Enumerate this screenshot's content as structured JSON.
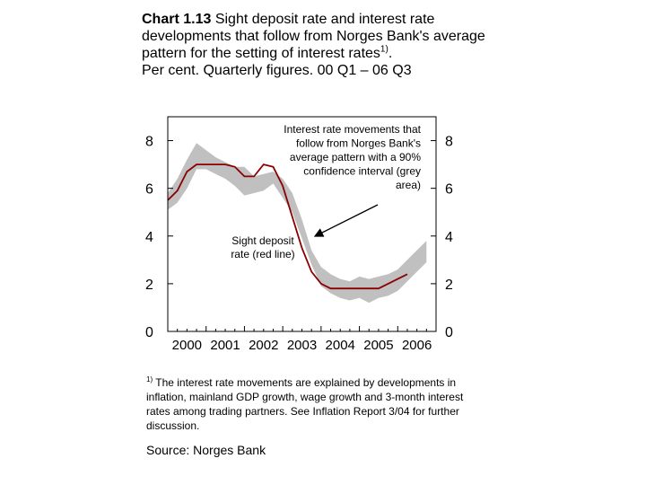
{
  "title": {
    "chart_no": "Chart 1.13",
    "text": "Sight deposit rate and interest rate developments that follow from Norges Bank's average pattern for the setting of interest rates",
    "superscript": "1)",
    "end": ".",
    "subtitle": "Per cent. Quarterly figures. 00 Q1 – 06 Q3"
  },
  "footnote": {
    "marker": "1)",
    "text": "The interest rate movements are explained by developments in inflation, mainland GDP growth, wage growth and 3-month interest rates among trading partners. See Inflation Report 3/04 for further discussion."
  },
  "source": "Source: Norges Bank",
  "chart_data": {
    "type": "line",
    "ylim": [
      0,
      9
    ],
    "yticks": [
      0,
      2,
      4,
      6,
      8
    ],
    "xticks": [
      "2000",
      "2001",
      "2002",
      "2003",
      "2004",
      "2005",
      "2006"
    ],
    "xlim": [
      2000,
      2007
    ],
    "grid": false,
    "annotations": [
      {
        "id": "band",
        "text": [
          "Interest rate movements that",
          "follow from Norges Bank's",
          "average pattern with a 90%",
          "confidence interval (grey",
          "area)"
        ]
      },
      {
        "id": "line",
        "text": [
          "Sight deposit",
          "rate (red line)"
        ]
      }
    ],
    "series": [
      {
        "role": "band",
        "color": "#c0c0c0",
        "x": [
          2000.0,
          2000.25,
          2000.5,
          2000.75,
          2001.0,
          2001.25,
          2001.5,
          2001.75,
          2002.0,
          2002.25,
          2002.5,
          2002.75,
          2003.0,
          2003.25,
          2003.5,
          2003.75,
          2004.0,
          2004.25,
          2004.5,
          2004.75,
          2005.0,
          2005.25,
          2005.5,
          2005.75,
          2006.0,
          2006.25,
          2006.5,
          2006.75
        ],
        "upper": [
          5.8,
          6.4,
          7.2,
          7.9,
          7.6,
          7.3,
          7.1,
          6.9,
          6.9,
          6.5,
          6.6,
          6.7,
          6.4,
          5.8,
          4.7,
          3.4,
          2.7,
          2.4,
          2.2,
          2.1,
          2.3,
          2.2,
          2.3,
          2.4,
          2.6,
          3.0,
          3.4,
          3.8
        ],
        "lower": [
          5.1,
          5.4,
          6.0,
          6.8,
          6.8,
          6.6,
          6.4,
          6.1,
          5.7,
          5.8,
          5.9,
          6.2,
          5.6,
          5.0,
          3.9,
          2.8,
          1.9,
          1.6,
          1.4,
          1.3,
          1.4,
          1.2,
          1.4,
          1.5,
          1.7,
          2.1,
          2.5,
          2.9
        ]
      },
      {
        "role": "line",
        "color": "#8b0000",
        "x": [
          2000.0,
          2000.25,
          2000.5,
          2000.75,
          2001.0,
          2001.25,
          2001.5,
          2001.75,
          2002.0,
          2002.25,
          2002.5,
          2002.75,
          2003.0,
          2003.25,
          2003.5,
          2003.75,
          2004.0,
          2004.25,
          2004.5,
          2004.75,
          2005.0,
          2005.25,
          2005.5,
          2005.75,
          2006.0,
          2006.25
        ],
        "y": [
          5.5,
          5.9,
          6.7,
          7.0,
          7.0,
          7.0,
          7.0,
          6.9,
          6.5,
          6.5,
          7.0,
          6.9,
          6.1,
          4.8,
          3.5,
          2.5,
          2.0,
          1.8,
          1.8,
          1.8,
          1.8,
          1.8,
          1.8,
          2.0,
          2.2,
          2.4
        ]
      }
    ]
  }
}
